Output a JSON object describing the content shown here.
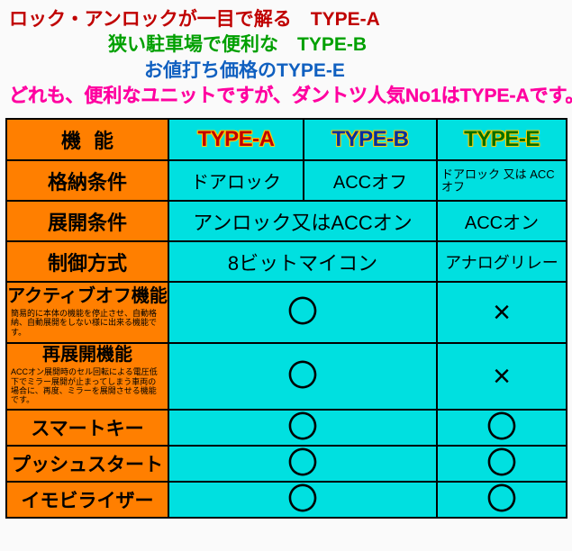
{
  "header": {
    "line1": "ロック・アンロックが一目で解る　TYPE-A",
    "line2": "狭い駐車場で便利な　TYPE-B",
    "line3": "お値打ち価格のTYPE-E",
    "line4": "どれも、便利なユニットですが、ダントツ人気No1はTYPE-Aです。"
  },
  "columns": {
    "label": "機能",
    "a": "TYPE-A",
    "b": "TYPE-B",
    "e": "TYPE-E"
  },
  "rows": {
    "storage": {
      "label": "格納条件",
      "a": "ドアロック",
      "b": "ACCオフ",
      "e": "ドアロック\n又は\nACCオフ"
    },
    "deploy": {
      "label": "展開条件",
      "ab": "アンロック又はACCオン",
      "e": "ACCオン"
    },
    "control": {
      "label": "制御方式",
      "ab": "8ビットマイコン",
      "e": "アナログリレー"
    },
    "activeoff": {
      "label": "アクティブオフ機能",
      "note": "簡易的に本体の機能を停止させ、自動格納、自動展開をしない様に出来る機能です。",
      "ab": "〇",
      "e": "×"
    },
    "redeploy": {
      "label": "再展開機能",
      "note": "ACCオン展開時のセル回転による電圧低下でミラー展開が止まってしまう車両の場合に、再度、ミラーを展開させる機能です。",
      "ab": "〇",
      "e": "×"
    },
    "smartkey": {
      "label": "スマートキー",
      "ab": "〇",
      "e": "〇"
    },
    "pushstart": {
      "label": "プッシュスタート",
      "ab": "〇",
      "e": "〇"
    },
    "immobilizer": {
      "label": "イモビライザー",
      "ab": "〇",
      "e": "〇"
    }
  }
}
